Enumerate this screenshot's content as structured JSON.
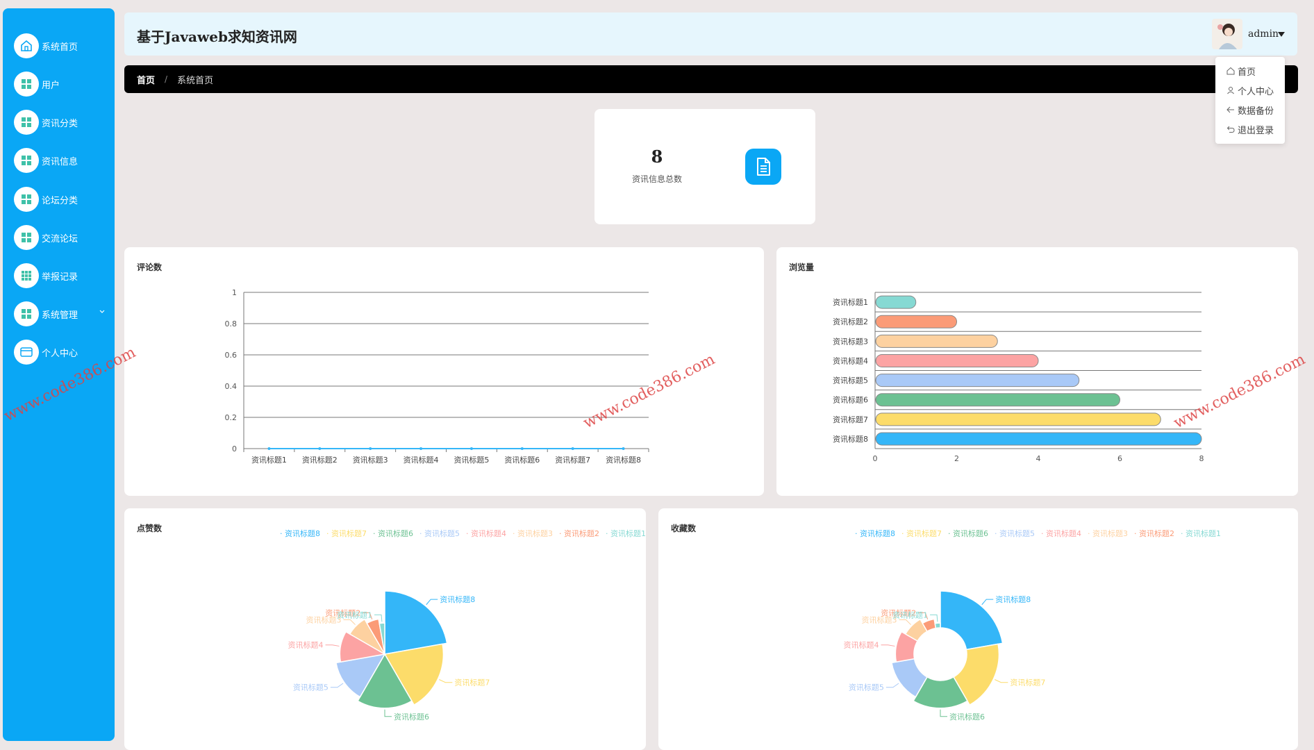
{
  "header": {
    "title": "基于Javaweb求知资讯网",
    "user": "admin"
  },
  "sidebar": {
    "items": [
      {
        "label": "系统首页",
        "icon": "home-icon"
      },
      {
        "label": "用户",
        "icon": "grid-icon"
      },
      {
        "label": "资讯分类",
        "icon": "grid-icon"
      },
      {
        "label": "资讯信息",
        "icon": "grid-icon"
      },
      {
        "label": "论坛分类",
        "icon": "grid-icon"
      },
      {
        "label": "交流论坛",
        "icon": "grid-icon"
      },
      {
        "label": "举报记录",
        "icon": "grid-icon"
      },
      {
        "label": "系统管理",
        "icon": "grid-icon"
      },
      {
        "label": "个人中心",
        "icon": "card-icon"
      }
    ]
  },
  "breadcrumb": {
    "home": "首页",
    "separator": "/",
    "current": "系统首页"
  },
  "dropdown": {
    "items": [
      "首页",
      "个人中心",
      "数据备份",
      "退出登录"
    ]
  },
  "stat": {
    "value": "8",
    "label": "资讯信息总数"
  },
  "watermark": "www.code386.com",
  "colors": {
    "accent": "#0aa7f5",
    "series": [
      "#34b6f8",
      "#fcdc6a",
      "#6cc192",
      "#a9c9f7",
      "#fca3a3",
      "#fdd1a0",
      "#fb9b77",
      "#86d9d3"
    ]
  },
  "chart_data": [
    {
      "type": "line",
      "title": "评论数",
      "categories": [
        "资讯标题1",
        "资讯标题2",
        "资讯标题3",
        "资讯标题4",
        "资讯标题5",
        "资讯标题6",
        "资讯标题7",
        "资讯标题8"
      ],
      "values": [
        0,
        0,
        0,
        0,
        0,
        0,
        0,
        0
      ],
      "ylim": [
        0,
        1
      ],
      "yticks": [
        "0",
        "0.2",
        "0.4",
        "0.6",
        "0.8",
        "1"
      ],
      "grid": true
    },
    {
      "type": "bar",
      "orientation": "horizontal",
      "title": "浏览量",
      "categories": [
        "资讯标题1",
        "资讯标题2",
        "资讯标题3",
        "资讯标题4",
        "资讯标题5",
        "资讯标题6",
        "资讯标题7",
        "资讯标题8"
      ],
      "values": [
        1,
        2,
        3,
        4,
        5,
        6,
        7,
        8
      ],
      "xlim": [
        0,
        8
      ],
      "xticks": [
        "0",
        "2",
        "4",
        "6",
        "8"
      ],
      "colors": [
        "#86d9d3",
        "#fb9b77",
        "#fdd1a0",
        "#fca3a3",
        "#a9c9f7",
        "#6cc192",
        "#fcdc6a",
        "#34b6f8"
      ]
    },
    {
      "type": "pie",
      "style": "rose",
      "title": "点赞数",
      "legend": [
        "资讯标题8",
        "资讯标题7",
        "资讯标题6",
        "资讯标题5",
        "资讯标题4",
        "资讯标题3",
        "资讯标题2",
        "资讯标题1"
      ],
      "categories": [
        "资讯标题8",
        "资讯标题7",
        "资讯标题6",
        "资讯标题5",
        "资讯标题4",
        "资讯标题3",
        "资讯标题2",
        "资讯标题1"
      ],
      "values": [
        8,
        7,
        6,
        5,
        4,
        3,
        2,
        1
      ]
    },
    {
      "type": "pie",
      "style": "rose-donut",
      "title": "收藏数",
      "legend": [
        "资讯标题8",
        "资讯标题7",
        "资讯标题6",
        "资讯标题5",
        "资讯标题4",
        "资讯标题3",
        "资讯标题2",
        "资讯标题1"
      ],
      "categories": [
        "资讯标题8",
        "资讯标题7",
        "资讯标题6",
        "资讯标题5",
        "资讯标题4",
        "资讯标题3",
        "资讯标题2",
        "资讯标题1"
      ],
      "values": [
        8,
        7,
        6,
        5,
        4,
        3,
        2,
        1
      ]
    }
  ]
}
